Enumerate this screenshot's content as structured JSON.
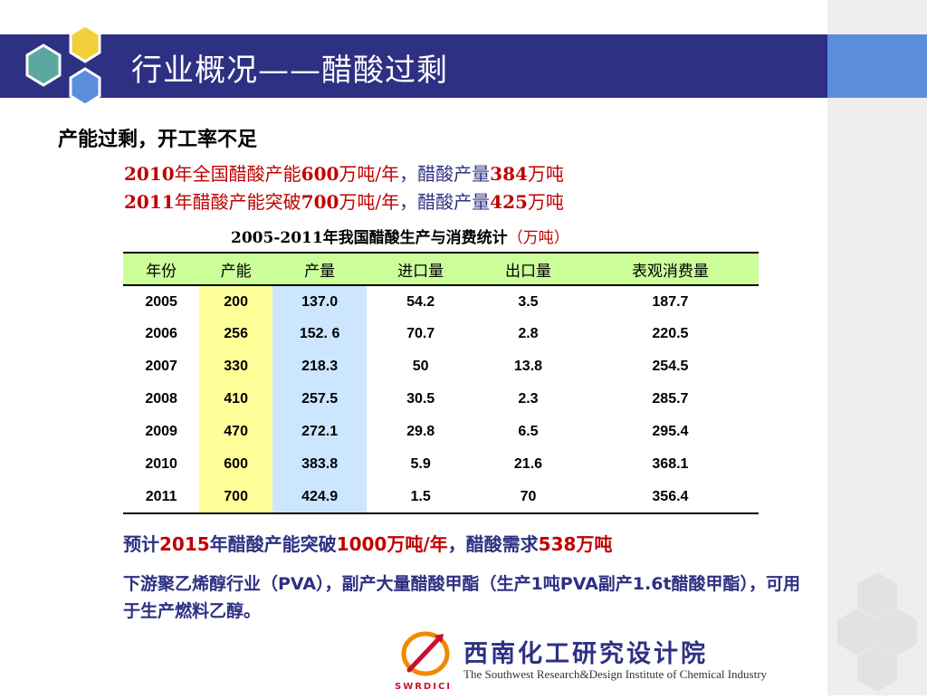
{
  "slide": {
    "title": "行业概况——醋酸过剩",
    "subtitle": "产能过剩，开工率不足",
    "line1": {
      "y1": "2010",
      "t1": "年全国醋酸产能",
      "v1": "600",
      "t2": "万吨/年",
      "t3": "，醋酸产量",
      "v2": "384",
      "t4": "万吨"
    },
    "line2": {
      "y1": "2011",
      "t1": "年醋酸产能突破",
      "v1": "700",
      "t2": "万吨/年",
      "t3": "，醋酸产量",
      "v2": "425",
      "t4": "万吨"
    },
    "table_caption": "2005-2011年我国醋酸生产与消费统计",
    "table_unit_open": "（",
    "table_unit": "万吨",
    "table_unit_close": "）",
    "headers": [
      "年份",
      "产能",
      "产量",
      "进口量",
      "出口量",
      "表观消费量"
    ],
    "rows": [
      [
        "2005",
        "200",
        "137.0",
        "54.2",
        "3.5",
        "187.7"
      ],
      [
        "2006",
        "256",
        "152. 6",
        "70.7",
        "2.8",
        "220.5"
      ],
      [
        "2007",
        "330",
        "218.3",
        "50",
        "13.8",
        "254.5"
      ],
      [
        "2008",
        "410",
        "257.5",
        "30.5",
        "2.3",
        "285.7"
      ],
      [
        "2009",
        "470",
        "272.1",
        "29.8",
        "6.5",
        "295.4"
      ],
      [
        "2010",
        "600",
        "383.8",
        "5.9",
        "21.6",
        "368.1"
      ],
      [
        "2011",
        "700",
        "424.9",
        "1.5",
        "70",
        "356.4"
      ]
    ],
    "forecast": {
      "t1": "预计",
      "v1": "2015",
      "t2": "年醋酸产能突破",
      "v2": "1000",
      "t3": "万吨/年",
      "t4": "，醋酸需求",
      "v3": "538",
      "t5": "万吨"
    },
    "note": "下游聚乙烯醇行业（PVA），副产大量醋酸甲酯（生产1吨PVA副产1.6t醋酸甲酯），可用于生产燃料乙醇。"
  },
  "org": {
    "name": "西南化工研究设计院",
    "english": "The Southwest Research&Design Institute of Chemical Industry",
    "abbr": "SWRDICI"
  },
  "colors": {
    "navy": "#2e3083",
    "red": "#c00000",
    "header_green": "#ccff99",
    "cap_yellow": "#ffff99",
    "prod_blue": "#cce6ff"
  }
}
